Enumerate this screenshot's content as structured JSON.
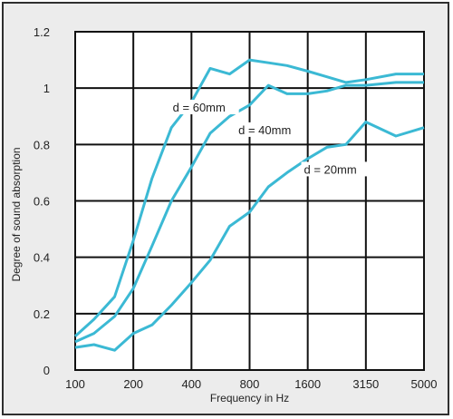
{
  "chart_data": {
    "type": "line",
    "title": "",
    "xlabel": "Frequency in Hz",
    "ylabel": "Degree of sound absorption",
    "x_scale": "log",
    "xlim": [
      100,
      5000
    ],
    "ylim": [
      0,
      1.2
    ],
    "grid": true,
    "xticks": [
      "100",
      "200",
      "400",
      "800",
      "1600",
      "3150",
      "5000"
    ],
    "yticks": [
      "0",
      "0.2",
      "0.4",
      "0.6",
      "0.8",
      "1",
      "1.2"
    ],
    "line_color": "#3bb9d4",
    "series": [
      {
        "name": "d = 60mm",
        "label_at": [
          320,
          0.92
        ],
        "points": [
          [
            100,
            0.12
          ],
          [
            125,
            0.18
          ],
          [
            160,
            0.26
          ],
          [
            200,
            0.46
          ],
          [
            250,
            0.68
          ],
          [
            315,
            0.86
          ],
          [
            400,
            0.95
          ],
          [
            500,
            1.07
          ],
          [
            630,
            1.05
          ],
          [
            800,
            1.1
          ],
          [
            1000,
            1.09
          ],
          [
            1250,
            1.08
          ],
          [
            1600,
            1.06
          ],
          [
            2000,
            1.04
          ],
          [
            2500,
            1.02
          ],
          [
            3150,
            1.03
          ],
          [
            4000,
            1.05
          ],
          [
            5000,
            1.05
          ]
        ]
      },
      {
        "name": "d = 40mm",
        "label_at": [
          700,
          0.84
        ],
        "points": [
          [
            100,
            0.1
          ],
          [
            125,
            0.13
          ],
          [
            160,
            0.19
          ],
          [
            200,
            0.29
          ],
          [
            250,
            0.44
          ],
          [
            315,
            0.6
          ],
          [
            400,
            0.72
          ],
          [
            500,
            0.84
          ],
          [
            630,
            0.9
          ],
          [
            800,
            0.94
          ],
          [
            1000,
            1.01
          ],
          [
            1250,
            0.98
          ],
          [
            1600,
            0.98
          ],
          [
            2000,
            0.99
          ],
          [
            2500,
            1.01
          ],
          [
            3150,
            1.01
          ],
          [
            4000,
            1.02
          ],
          [
            5000,
            1.02
          ]
        ]
      },
      {
        "name": "d = 20mm",
        "label_at": [
          1530,
          0.7
        ],
        "points": [
          [
            100,
            0.08
          ],
          [
            125,
            0.09
          ],
          [
            160,
            0.07
          ],
          [
            200,
            0.13
          ],
          [
            250,
            0.16
          ],
          [
            315,
            0.23
          ],
          [
            400,
            0.31
          ],
          [
            500,
            0.39
          ],
          [
            630,
            0.51
          ],
          [
            800,
            0.56
          ],
          [
            1000,
            0.65
          ],
          [
            1250,
            0.7
          ],
          [
            1600,
            0.75
          ],
          [
            2000,
            0.79
          ],
          [
            2500,
            0.8
          ],
          [
            3150,
            0.88
          ],
          [
            4000,
            0.83
          ],
          [
            5000,
            0.86
          ]
        ]
      }
    ]
  }
}
